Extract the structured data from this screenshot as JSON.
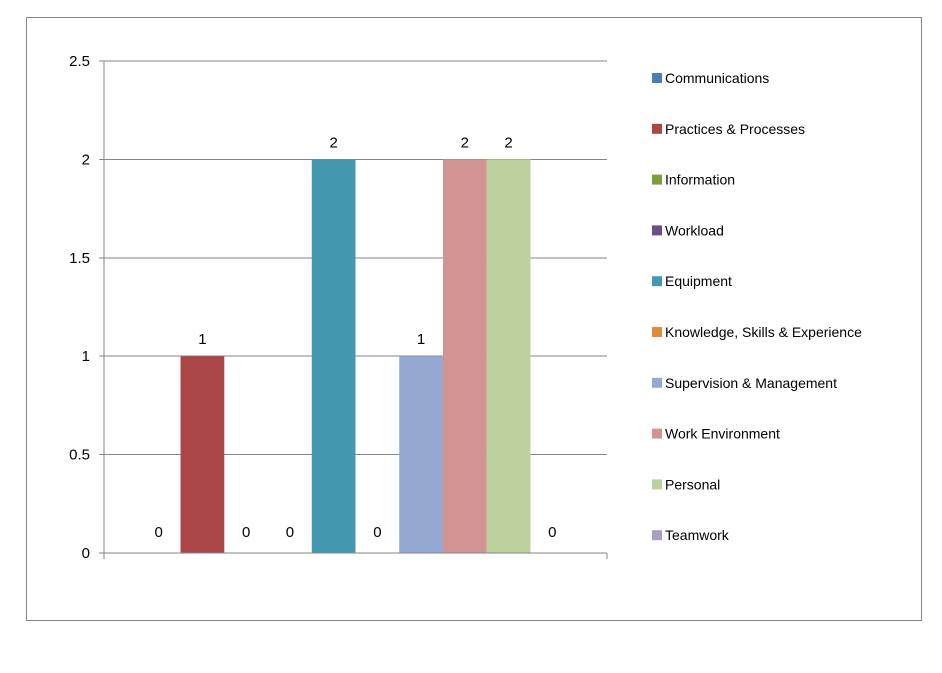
{
  "chart_data": {
    "type": "bar",
    "series": [
      {
        "name": "Communications",
        "value": 0,
        "label": "0",
        "color": "#4a7ebb"
      },
      {
        "name": "Practices & Processes",
        "value": 1,
        "label": "1",
        "color": "#ab4646"
      },
      {
        "name": "Information",
        "value": 0,
        "label": "0",
        "color": "#7e9e3c"
      },
      {
        "name": "Workload",
        "value": 0,
        "label": "0",
        "color": "#6a5089"
      },
      {
        "name": "Equipment",
        "value": 2,
        "label": "2",
        "color": "#4499b0"
      },
      {
        "name": "Knowledge, Skills & Experience",
        "value": 0,
        "label": "0",
        "color": "#e08a3c"
      },
      {
        "name": "Supervision & Management",
        "value": 1,
        "label": "1",
        "color": "#94a8d2"
      },
      {
        "name": "Work Environment",
        "value": 2,
        "label": "2",
        "color": "#d29493"
      },
      {
        "name": "Personal",
        "value": 2,
        "label": "2",
        "color": "#bcd19b"
      },
      {
        "name": "Teamwork",
        "value": 0,
        "label": "0",
        "color": "#ab9fc4"
      }
    ],
    "y_ticks": [
      {
        "value": 0,
        "label": "0"
      },
      {
        "value": 0.5,
        "label": "0.5"
      },
      {
        "value": 1,
        "label": "1"
      },
      {
        "value": 1.5,
        "label": "1.5"
      },
      {
        "value": 2,
        "label": "2"
      },
      {
        "value": 2.5,
        "label": "2.5"
      }
    ],
    "ylim": [
      0,
      2.5
    ],
    "grid": true,
    "legend_position": "right",
    "colors": {
      "axis": "#868686",
      "grid": "#868686",
      "frame": "#868686"
    }
  }
}
